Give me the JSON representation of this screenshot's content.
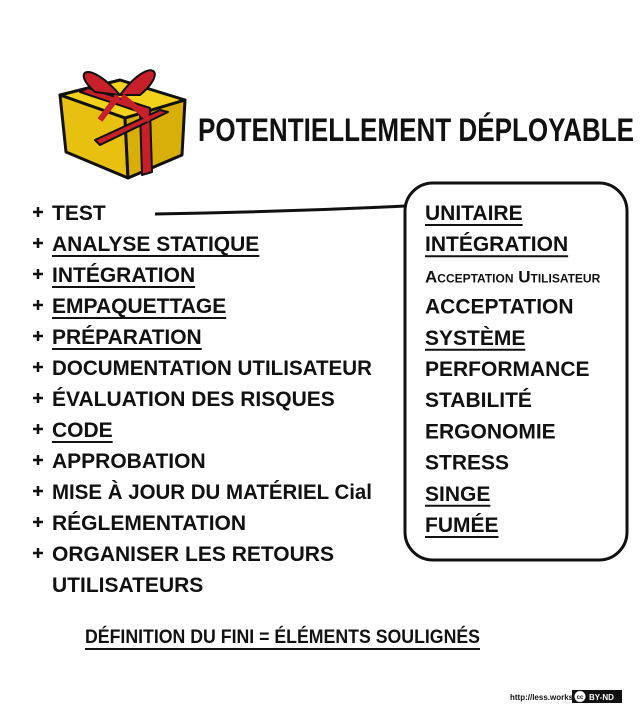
{
  "header": {
    "title": "POTENTIELLEMENT DÉPLOYABLE"
  },
  "left_list": [
    {
      "lines": [
        "TEST"
      ],
      "underlined": false
    },
    {
      "lines": [
        "ANALYSE STATIQUE"
      ],
      "underlined": true
    },
    {
      "lines": [
        "INTÉGRATION"
      ],
      "underlined": true
    },
    {
      "lines": [
        "EMPAQUETTAGE"
      ],
      "underlined": true
    },
    {
      "lines": [
        "PRÉPARATION"
      ],
      "underlined": true
    },
    {
      "lines": [
        "DOCUMENTATION UTILISATEUR"
      ],
      "underlined": false
    },
    {
      "lines": [
        "ÉVALUATION DES RISQUES"
      ],
      "underlined": false
    },
    {
      "lines": [
        "CODE"
      ],
      "underlined": true
    },
    {
      "lines": [
        "APPROBATION"
      ],
      "underlined": false
    },
    {
      "lines": [
        "MISE À JOUR DU MATÉRIEL Cial"
      ],
      "underlined": false
    },
    {
      "lines": [
        "RÉGLEMENTATION"
      ],
      "underlined": false
    },
    {
      "lines": [
        "ORGANISER LES RETOURS",
        "UTILISATEURS"
      ],
      "underlined": false
    }
  ],
  "test_kinds": [
    {
      "text": "UNITAIRE",
      "underlined": true
    },
    {
      "text": "INTÉGRATION",
      "underlined": true
    },
    {
      "text": "Acceptation Utilisateur",
      "underlined": false,
      "small_caps": true
    },
    {
      "text": "ACCEPTATION",
      "underlined": false
    },
    {
      "text": "SYSTÈME",
      "underlined": true
    },
    {
      "text": "PERFORMANCE",
      "underlined": false
    },
    {
      "text": "STABILITÉ",
      "underlined": false
    },
    {
      "text": "ERGONOMIE",
      "underlined": false
    },
    {
      "text": "STRESS",
      "underlined": false
    },
    {
      "text": "SINGE",
      "underlined": true
    },
    {
      "text": "FUMÉE",
      "underlined": true
    }
  ],
  "footer": {
    "definition": "DÉFINITION DU FINI = ÉLÉMENTS SOULIGNÉS",
    "url": "http://less.works",
    "license_cc": "cc",
    "license": "BY-ND"
  }
}
